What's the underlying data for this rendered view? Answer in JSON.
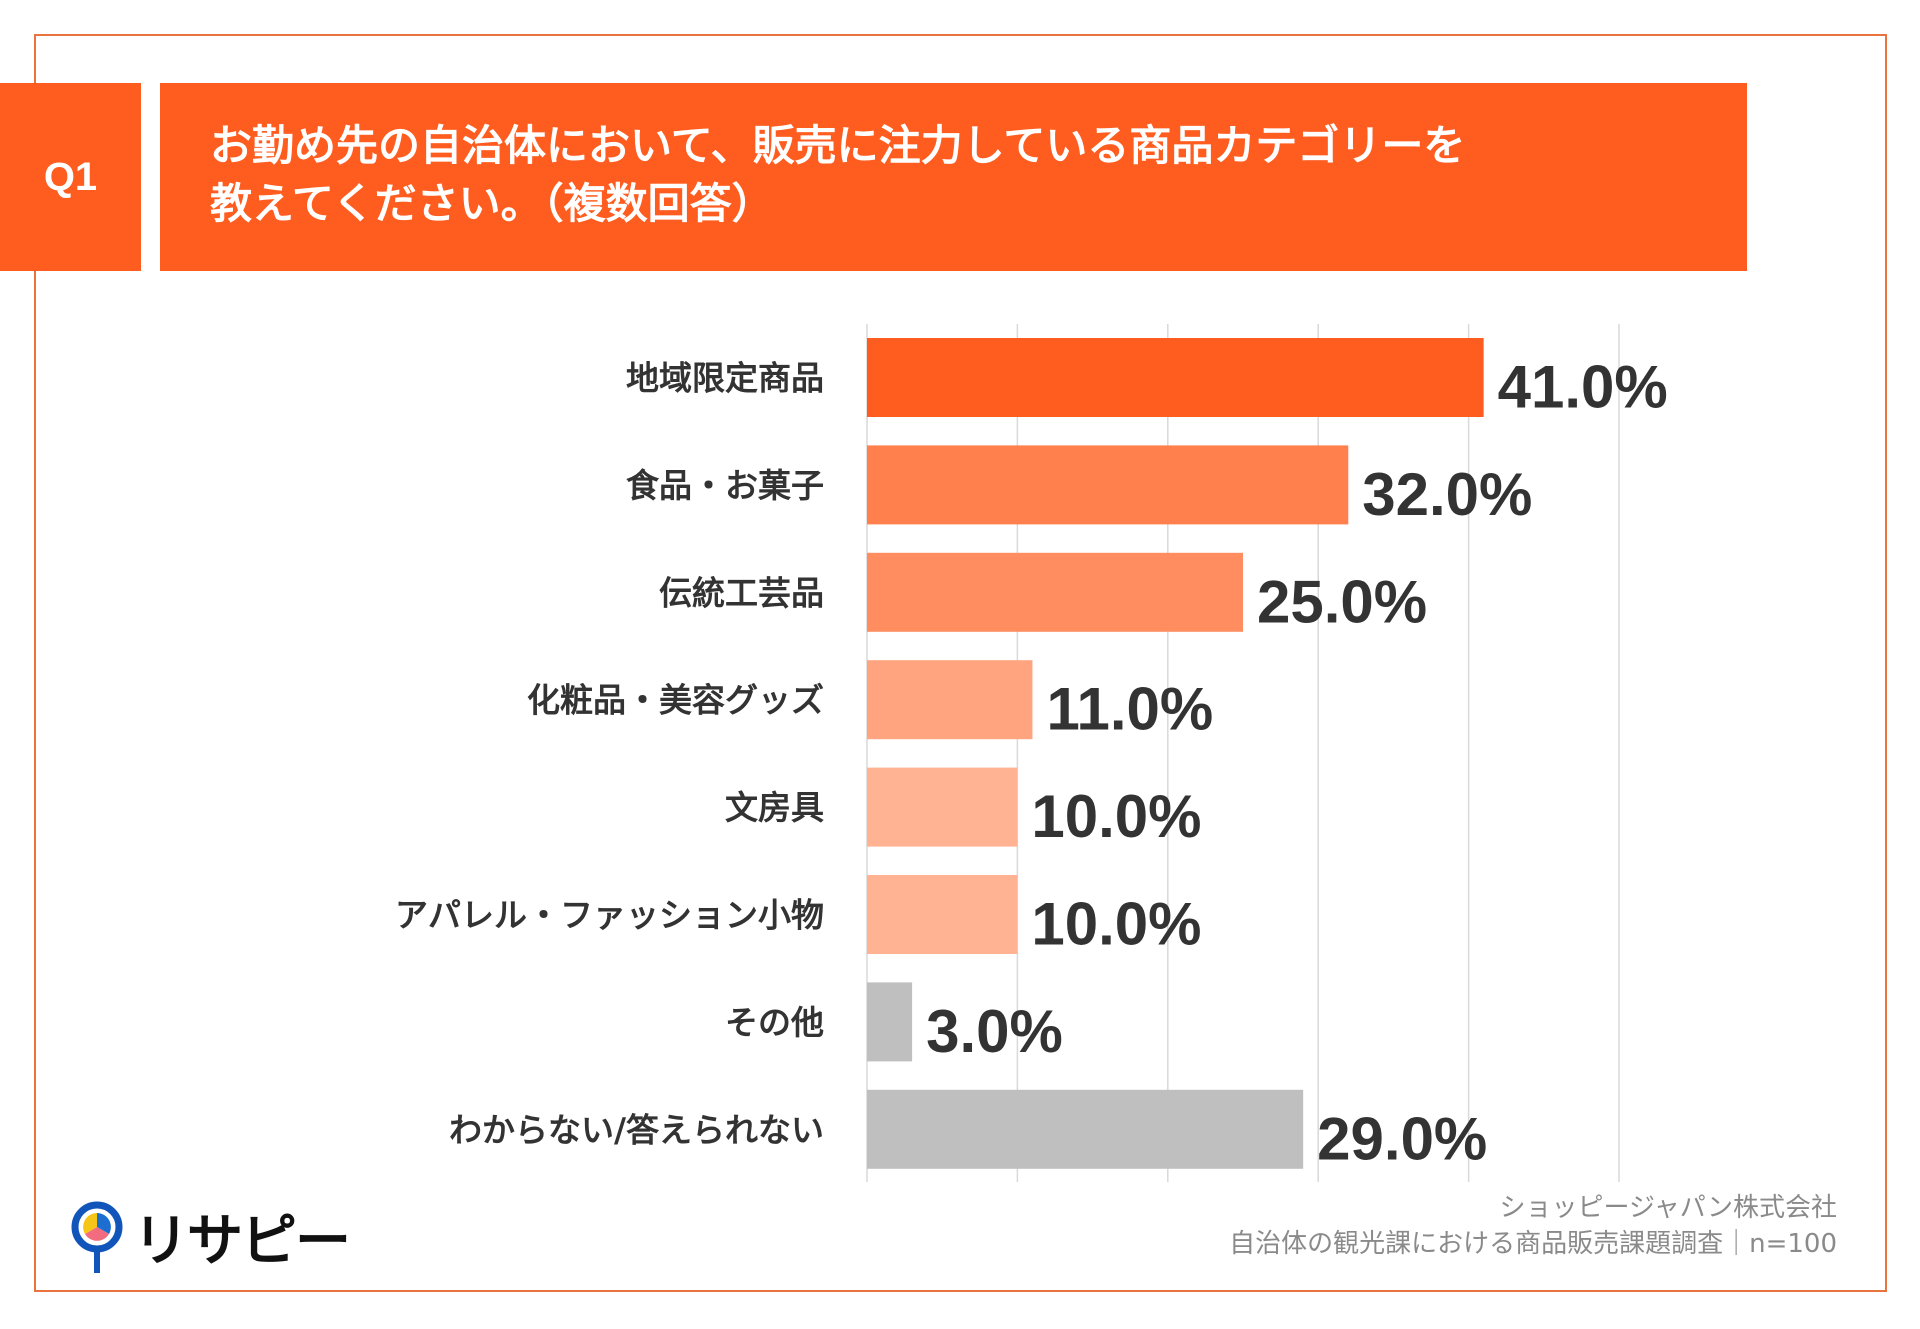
{
  "header": {
    "q_label": "Q1",
    "title_line1": "お勤め先の自治体において、販売に注力している商品カテゴリーを",
    "title_line2": "教えてください。（複数回答）"
  },
  "chart_data": {
    "type": "bar",
    "orientation": "horizontal",
    "categories": [
      "地域限定商品",
      "食品・お菓子",
      "伝統工芸品",
      "化粧品・美容グッズ",
      "文房具",
      "アパレル・ファッション小物",
      "その他",
      "わからない/答えられない"
    ],
    "values": [
      41.0,
      32.0,
      25.0,
      11.0,
      10.0,
      10.0,
      3.0,
      29.0
    ],
    "value_labels": [
      "41.0%",
      "32.0%",
      "25.0%",
      "11.0%",
      "10.0%",
      "10.0%",
      "3.0%",
      "29.0%"
    ],
    "bar_colors": [
      "#ff5c1f",
      "#ff7f4d",
      "#ff8d5f",
      "#ffa47e",
      "#ffb393",
      "#ffb393",
      "#bfbfbf",
      "#bfbfbf"
    ],
    "xlim": [
      0,
      50
    ],
    "grid": true,
    "grid_step": 10,
    "unit": "%"
  },
  "footer": {
    "company": "ショッピージャパン株式会社",
    "survey": "自治体の観光課における商品販売課題調査｜n=100"
  },
  "logo": {
    "text": "リサピー"
  }
}
